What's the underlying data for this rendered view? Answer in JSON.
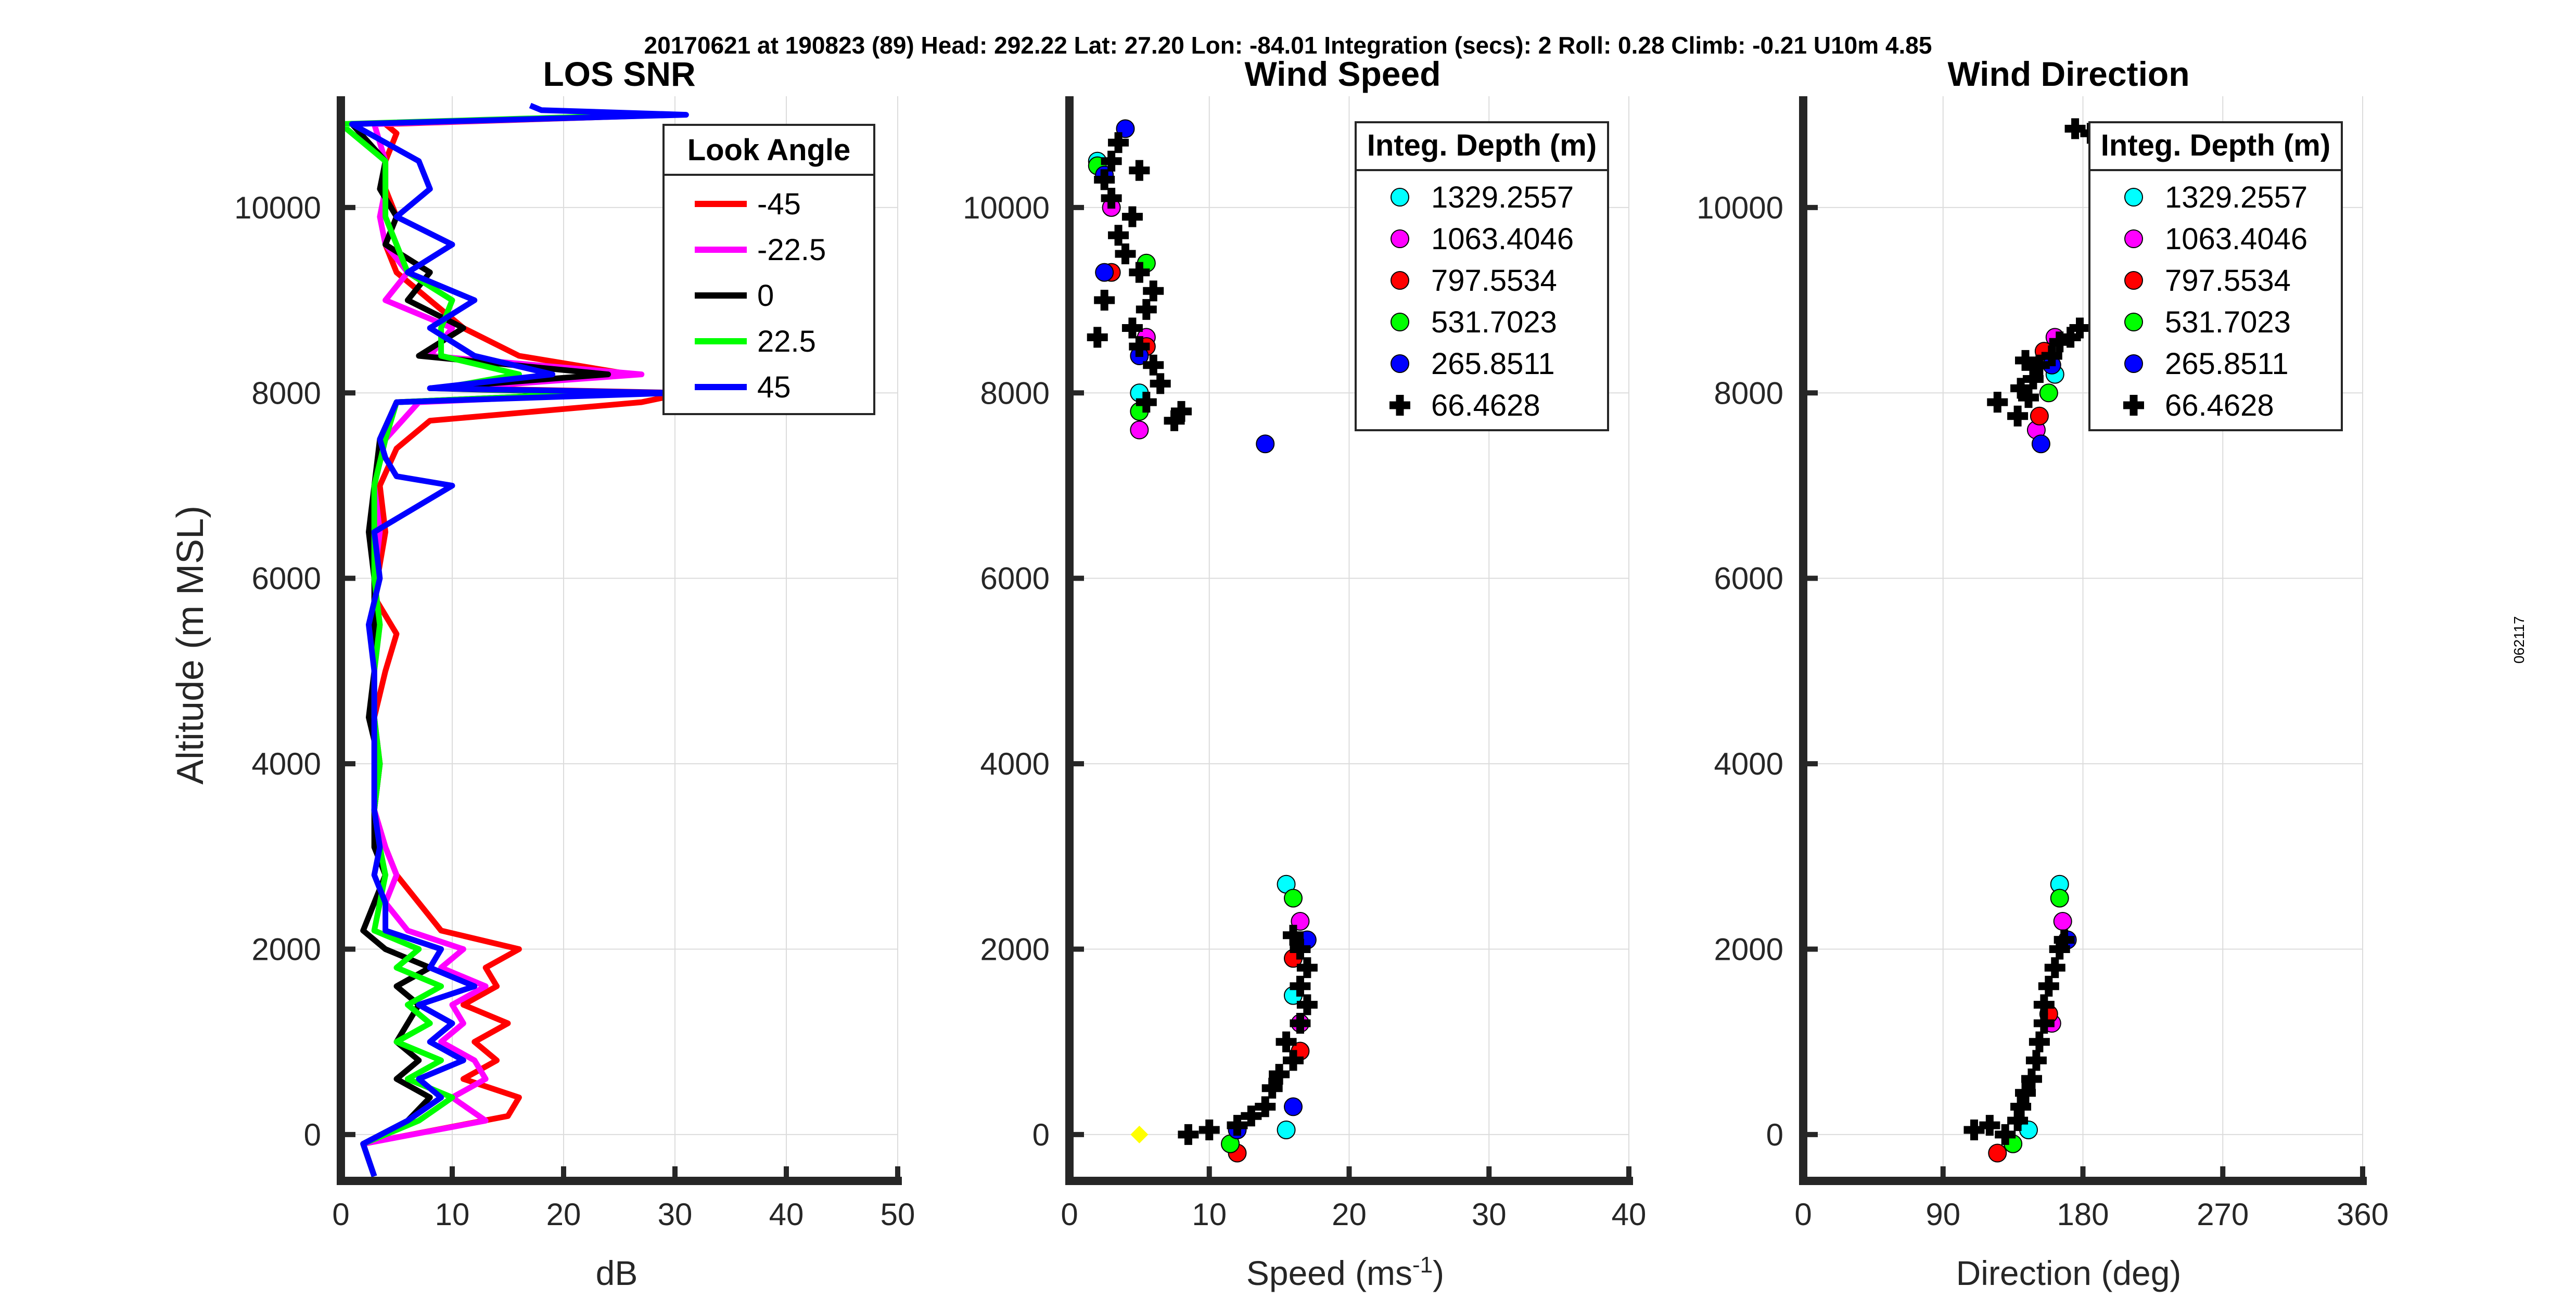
{
  "figure": {
    "suptitle": "20170621 at 190823 (89)  Head: 292.22  Lat: 27.20  Lon: -84.01  Integration (secs): 2  Roll: 0.28  Climb: -0.21  U10m 4.85",
    "side_stamp": "062117"
  },
  "colors": {
    "red": "#ff0000",
    "magenta": "#ff00ff",
    "black": "#000000",
    "green": "#00ff00",
    "blue": "#0000ff",
    "cyan": "#00ffff",
    "yellow": "#ffff00",
    "axis": "#262626",
    "grid": "#dcdcdc"
  },
  "chart_data": [
    {
      "id": "snr",
      "type": "line",
      "title": "LOS SNR",
      "xlabel": "dB",
      "ylabel": "Altitude (m MSL)",
      "xlim": [
        0,
        50
      ],
      "ylim": [
        -500,
        11200
      ],
      "xticks": [
        0,
        10,
        20,
        30,
        40,
        50
      ],
      "yticks": [
        0,
        2000,
        4000,
        6000,
        8000,
        10000
      ],
      "grid": true,
      "legend": {
        "title": "Look Angle",
        "position": "top-right"
      },
      "series": [
        {
          "name": "-45",
          "color": "#ff0000",
          "altitude": [
            -450,
            -100,
            200,
            400,
            600,
            800,
            1000,
            1200,
            1400,
            1600,
            1800,
            2000,
            2200,
            2500,
            2800,
            3100,
            3500,
            4000,
            4500,
            5000,
            5400,
            5800,
            6500,
            7000,
            7400,
            7700,
            7900,
            8000,
            8050,
            8200,
            8400,
            8700,
            9000,
            9300,
            9600,
            9900,
            10200,
            10500,
            10800,
            10900,
            11000
          ],
          "db": [
            3,
            2,
            15,
            16,
            11,
            14,
            12,
            15,
            11,
            14,
            13,
            16,
            9,
            7,
            5,
            4,
            3,
            3.5,
            3,
            4,
            5,
            3,
            4,
            3.5,
            5,
            8,
            27,
            31,
            10,
            26,
            16,
            11,
            8,
            5,
            4,
            5,
            4,
            4,
            5,
            4,
            30
          ]
        },
        {
          "name": "-22.5",
          "color": "#ff00ff",
          "altitude": [
            -450,
            -100,
            150,
            400,
            600,
            800,
            1000,
            1200,
            1400,
            1600,
            1800,
            2000,
            2200,
            2500,
            2800,
            3100,
            3500,
            4000,
            4500,
            5000,
            5500,
            6000,
            6500,
            7000,
            7500,
            7900,
            8000,
            8050,
            8200,
            8400,
            8700,
            9000,
            9300,
            9600,
            9900,
            10200,
            10500,
            10900,
            11000
          ],
          "db": [
            3,
            2,
            13,
            10,
            13,
            12,
            9,
            11,
            10,
            13,
            9,
            11,
            6,
            4,
            5,
            4,
            3,
            3.5,
            3,
            3,
            3.5,
            3,
            3.5,
            3,
            4,
            7,
            26,
            10,
            27,
            8,
            10,
            4,
            6,
            4,
            3.5,
            4,
            4,
            3,
            30
          ]
        },
        {
          "name": "0",
          "color": "#000000",
          "altitude": [
            -450,
            -100,
            150,
            400,
            600,
            800,
            1000,
            1200,
            1400,
            1600,
            1800,
            2000,
            2200,
            2500,
            2800,
            3100,
            3500,
            4000,
            4500,
            5000,
            5500,
            6000,
            6500,
            7000,
            7500,
            7900,
            8000,
            8050,
            8200,
            8400,
            8700,
            9000,
            9300,
            9600,
            9900,
            10200,
            10500,
            10900,
            11000
          ],
          "db": [
            3,
            2,
            6,
            8,
            5,
            7,
            5,
            6,
            7,
            5,
            8,
            4,
            2,
            3,
            4,
            3,
            3,
            3.5,
            2.5,
            3,
            3,
            3,
            2.5,
            3,
            3.5,
            5,
            24,
            8,
            24,
            7,
            11,
            6,
            8,
            4,
            5,
            3.5,
            4,
            1,
            29
          ]
        },
        {
          "name": "22.5",
          "color": "#00ff00",
          "altitude": [
            -450,
            -100,
            150,
            400,
            600,
            800,
            1000,
            1200,
            1400,
            1600,
            1800,
            2000,
            2200,
            2500,
            2800,
            3100,
            3500,
            4000,
            4500,
            5000,
            5500,
            6000,
            6500,
            7000,
            7500,
            7900,
            8000,
            8050,
            8200,
            8400,
            8700,
            9000,
            9300,
            9600,
            9900,
            10200,
            10500,
            10900,
            11000
          ],
          "db": [
            3,
            2,
            7,
            10,
            6,
            9,
            5,
            8,
            6,
            9,
            5,
            7,
            3,
            3.5,
            4,
            3.5,
            3,
            3.5,
            3,
            3,
            3.5,
            3,
            3,
            3,
            4,
            5,
            24,
            9,
            16,
            9,
            9,
            10,
            6,
            5,
            4,
            4,
            4,
            0,
            28
          ]
        },
        {
          "name": "45",
          "color": "#0000ff",
          "altitude": [
            -450,
            -100,
            150,
            400,
            600,
            800,
            1000,
            1200,
            1400,
            1600,
            1800,
            2000,
            2200,
            2500,
            2800,
            3100,
            3500,
            4000,
            4500,
            5000,
            5500,
            6000,
            6500,
            7000,
            7100,
            7300,
            7500,
            7900,
            8000,
            8050,
            8200,
            8400,
            8700,
            9000,
            9300,
            9600,
            9900,
            10200,
            10500,
            10900,
            11000,
            11050,
            11100
          ],
          "db": [
            3,
            2,
            6,
            9,
            7,
            11,
            8,
            10,
            7,
            12,
            8,
            9,
            4,
            4,
            3,
            3.5,
            3,
            3,
            3,
            3,
            2.5,
            3.5,
            3,
            10,
            5,
            4,
            3.5,
            5,
            30,
            8,
            19,
            12,
            8,
            12,
            6,
            10,
            5,
            8,
            7,
            1,
            31,
            18,
            17
          ]
        }
      ]
    },
    {
      "id": "wind_speed",
      "type": "scatter",
      "title": "Wind Speed",
      "xlabel": "Speed (ms",
      "xlabel_sup": "-1",
      "xlabel_end": ")",
      "xlim": [
        0,
        40
      ],
      "ylim": [
        -500,
        11200
      ],
      "xticks": [
        0,
        10,
        20,
        30,
        40
      ],
      "yticks": [
        0,
        2000,
        4000,
        6000,
        8000,
        10000
      ],
      "grid": true,
      "legend": {
        "title": "Integ. Depth (m)",
        "position": "top-right"
      },
      "series": [
        {
          "name": "1329.2557",
          "color": "#00ffff",
          "marker": "circle",
          "points": [
            [
              15.5,
              2700
            ],
            [
              15.5,
              50
            ],
            [
              2,
              10500
            ],
            [
              5,
              8000
            ],
            [
              16,
              1500
            ]
          ]
        },
        {
          "name": "1063.4046",
          "color": "#ff00ff",
          "marker": "circle",
          "points": [
            [
              16.5,
              2300
            ],
            [
              5,
              7600
            ],
            [
              5.5,
              8600
            ],
            [
              3,
              10000
            ],
            [
              16.5,
              1200
            ]
          ]
        },
        {
          "name": "797.5534",
          "color": "#ff0000",
          "marker": "circle",
          "points": [
            [
              12,
              -200
            ],
            [
              3,
              9300
            ],
            [
              5.5,
              8500
            ],
            [
              16.5,
              900
            ],
            [
              16,
              1900
            ]
          ]
        },
        {
          "name": "531.7023",
          "color": "#00ff00",
          "marker": "circle",
          "points": [
            [
              11.5,
              -100
            ],
            [
              16,
              2550
            ],
            [
              5,
              7800
            ],
            [
              2,
              10450
            ],
            [
              5.5,
              9400
            ]
          ]
        },
        {
          "name": "265.8511",
          "color": "#0000ff",
          "marker": "circle",
          "points": [
            [
              14,
              7450
            ],
            [
              12,
              50
            ],
            [
              2.5,
              10350
            ],
            [
              4,
              10850
            ],
            [
              2.5,
              9300
            ],
            [
              17,
              2100
            ],
            [
              16,
              300
            ],
            [
              5,
              8400
            ]
          ]
        },
        {
          "name": "66.4628",
          "color": "#000000",
          "marker": "plus",
          "points": [
            [
              8.5,
              0
            ],
            [
              10,
              50
            ],
            [
              12,
              100
            ],
            [
              13,
              200
            ],
            [
              14,
              300
            ],
            [
              14.5,
              500
            ],
            [
              15,
              650
            ],
            [
              16,
              800
            ],
            [
              15.5,
              1000
            ],
            [
              16.5,
              1200
            ],
            [
              17,
              1400
            ],
            [
              16.5,
              1600
            ],
            [
              17,
              1800
            ],
            [
              16.5,
              2000
            ],
            [
              16,
              2150
            ],
            [
              7.5,
              7700
            ],
            [
              8,
              7800
            ],
            [
              5.5,
              7900
            ],
            [
              6.5,
              8100
            ],
            [
              6,
              8300
            ],
            [
              5,
              8500
            ],
            [
              4.5,
              8700
            ],
            [
              5.5,
              8900
            ],
            [
              6,
              9100
            ],
            [
              5,
              9300
            ],
            [
              4,
              9500
            ],
            [
              3.5,
              9700
            ],
            [
              4.5,
              9900
            ],
            [
              3,
              10100
            ],
            [
              2.5,
              10300
            ],
            [
              3,
              10500
            ],
            [
              3.5,
              10700
            ],
            [
              5,
              10400
            ],
            [
              2,
              8600
            ],
            [
              2.5,
              9000
            ]
          ]
        },
        {
          "name": "",
          "color": "#ffff00",
          "marker": "diamond",
          "points": [
            [
              5,
              0
            ]
          ]
        }
      ]
    },
    {
      "id": "wind_direction",
      "type": "scatter",
      "title": "Wind Direction",
      "xlabel": "Direction (deg)",
      "xlim": [
        0,
        360
      ],
      "ylim": [
        -500,
        11200
      ],
      "xticks": [
        0,
        90,
        180,
        270,
        360
      ],
      "yticks": [
        0,
        2000,
        4000,
        6000,
        8000,
        10000
      ],
      "grid": true,
      "legend": {
        "title": "Integ. Depth (m)",
        "position": "top-right"
      },
      "series": [
        {
          "name": "1329.2557",
          "color": "#00ffff",
          "marker": "circle",
          "points": [
            [
              165,
              2700
            ],
            [
              145,
              50
            ],
            [
              162,
              8200
            ]
          ]
        },
        {
          "name": "1063.4046",
          "color": "#ff00ff",
          "marker": "circle",
          "points": [
            [
              167,
              2300
            ],
            [
              150,
              7600
            ],
            [
              162,
              8600
            ],
            [
              160,
              1200
            ]
          ]
        },
        {
          "name": "797.5534",
          "color": "#ff0000",
          "marker": "circle",
          "points": [
            [
              125,
              -200
            ],
            [
              155,
              8450
            ],
            [
              158,
              1300
            ],
            [
              152,
              7750
            ]
          ]
        },
        {
          "name": "531.7023",
          "color": "#00ff00",
          "marker": "circle",
          "points": [
            [
              135,
              -100
            ],
            [
              165,
              2550
            ],
            [
              158,
              8000
            ]
          ]
        },
        {
          "name": "265.8511",
          "color": "#0000ff",
          "marker": "circle",
          "points": [
            [
              153,
              7450
            ],
            [
              170,
              2100
            ],
            [
              160,
              8300
            ]
          ]
        },
        {
          "name": "66.4628",
          "color": "#000000",
          "marker": "plus",
          "points": [
            [
              110,
              50
            ],
            [
              120,
              100
            ],
            [
              130,
              0
            ],
            [
              138,
              150
            ],
            [
              140,
              300
            ],
            [
              143,
              450
            ],
            [
              147,
              600
            ],
            [
              150,
              800
            ],
            [
              152,
              1000
            ],
            [
              155,
              1200
            ],
            [
              155,
              1400
            ],
            [
              158,
              1600
            ],
            [
              162,
              1800
            ],
            [
              165,
              2000
            ],
            [
              168,
              2100
            ],
            [
              125,
              7900
            ],
            [
              138,
              7750
            ],
            [
              145,
              7950
            ],
            [
              140,
              8050
            ],
            [
              148,
              8150
            ],
            [
              143,
              8350
            ],
            [
              152,
              8300
            ],
            [
              160,
              8400
            ],
            [
              165,
              8550
            ],
            [
              172,
              8600
            ],
            [
              178,
              8700
            ],
            [
              175,
              10850
            ],
            [
              185,
              10800
            ]
          ]
        }
      ]
    }
  ]
}
